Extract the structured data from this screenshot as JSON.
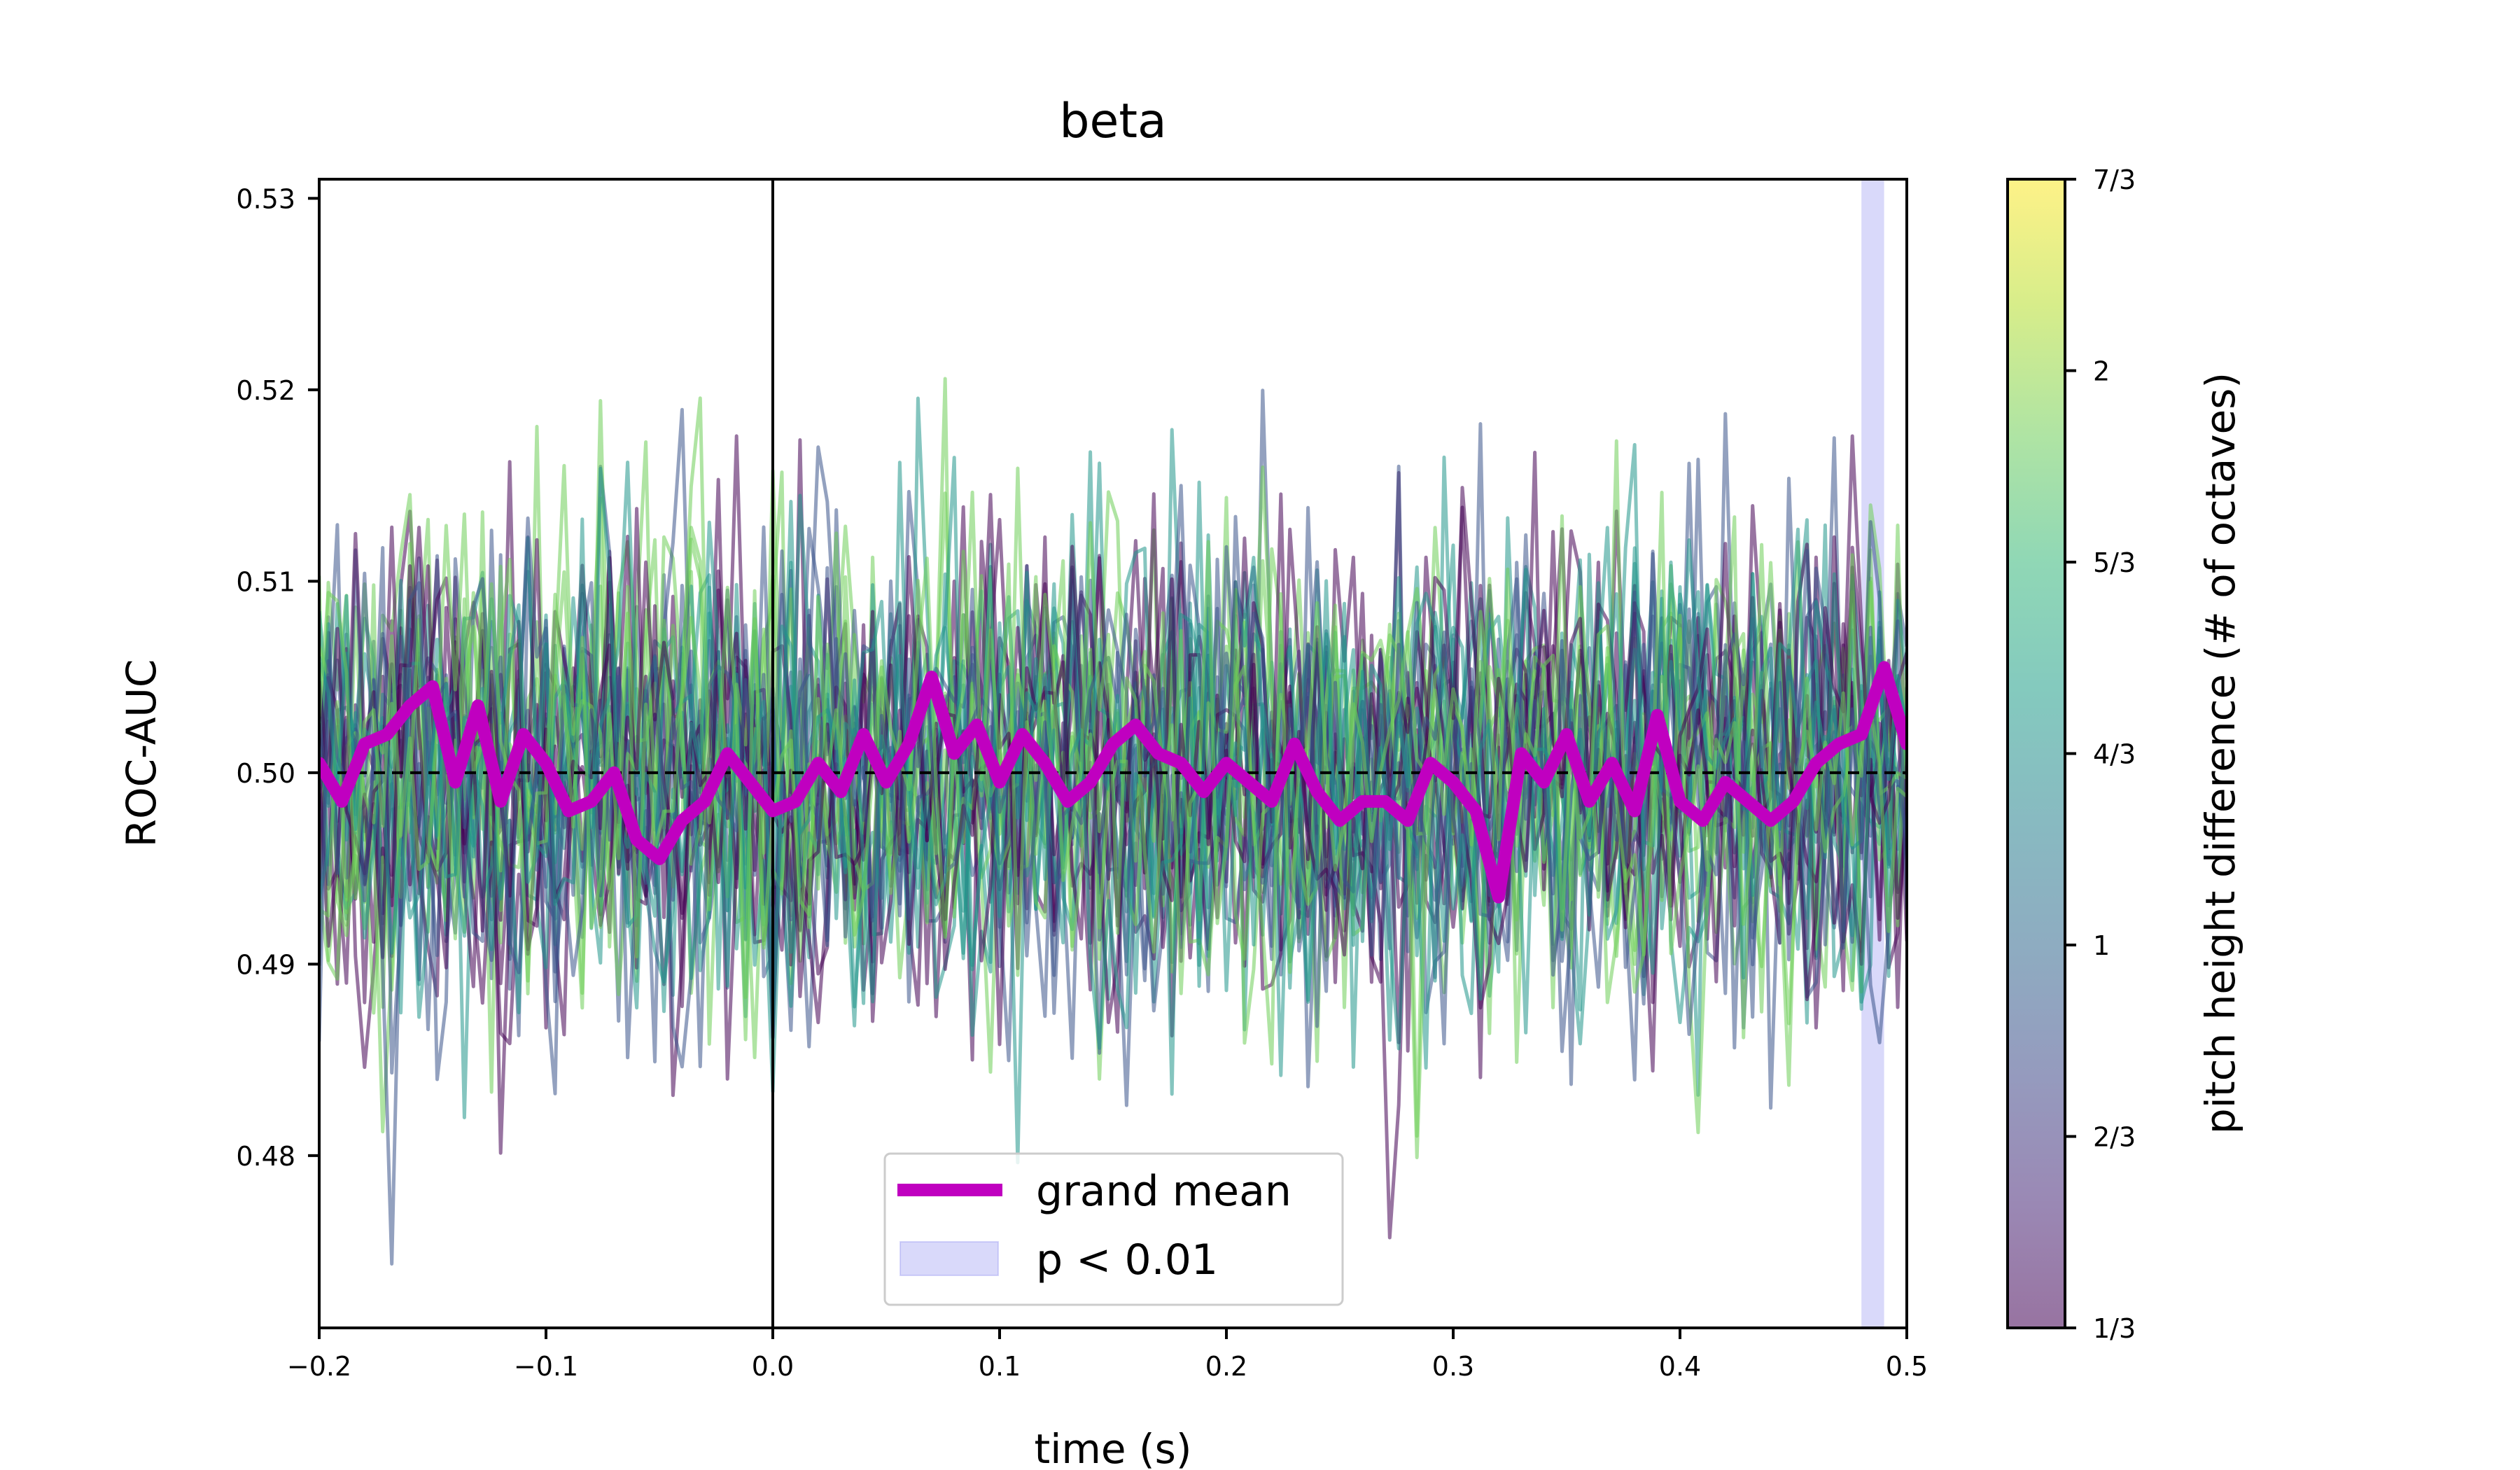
{
  "chart_data": {
    "type": "line",
    "title": "beta",
    "xlabel": "time (s)",
    "ylabel": "ROC-AUC",
    "xlim": [
      -0.2,
      0.5
    ],
    "ylim": [
      0.471,
      0.531
    ],
    "x_ticks": [
      {
        "value": -0.2,
        "label": "−0.2"
      },
      {
        "value": -0.1,
        "label": "−0.1"
      },
      {
        "value": 0.0,
        "label": "0.0"
      },
      {
        "value": 0.1,
        "label": "0.1"
      },
      {
        "value": 0.2,
        "label": "0.2"
      },
      {
        "value": 0.3,
        "label": "0.3"
      },
      {
        "value": 0.4,
        "label": "0.4"
      },
      {
        "value": 0.5,
        "label": "0.5"
      }
    ],
    "y_ticks": [
      {
        "value": 0.48,
        "label": "0.48"
      },
      {
        "value": 0.49,
        "label": "0.49"
      },
      {
        "value": 0.5,
        "label": "0.50"
      },
      {
        "value": 0.51,
        "label": "0.51"
      },
      {
        "value": 0.52,
        "label": "0.52"
      },
      {
        "value": 0.53,
        "label": "0.53"
      }
    ],
    "grid": false,
    "reference_lines": {
      "chance_level_y": 0.5,
      "stimulus_onset_x": 0.0
    },
    "significance_band": {
      "label": "p < 0.01",
      "x_start": 0.48,
      "x_end": 0.49,
      "color": "#8080f0",
      "alpha": 0.3
    },
    "grand_mean": {
      "name": "grand mean",
      "color": "#c000c0",
      "x": [
        -0.2,
        -0.19,
        -0.18,
        -0.17,
        -0.16,
        -0.15,
        -0.14,
        -0.13,
        -0.12,
        -0.11,
        -0.1,
        -0.09,
        -0.08,
        -0.07,
        -0.06,
        -0.05,
        -0.04,
        -0.03,
        -0.02,
        -0.01,
        0.0,
        0.01,
        0.02,
        0.03,
        0.04,
        0.05,
        0.06,
        0.07,
        0.08,
        0.09,
        0.1,
        0.11,
        0.12,
        0.13,
        0.14,
        0.15,
        0.16,
        0.17,
        0.18,
        0.19,
        0.2,
        0.21,
        0.22,
        0.23,
        0.24,
        0.25,
        0.26,
        0.27,
        0.28,
        0.29,
        0.3,
        0.31,
        0.32,
        0.33,
        0.34,
        0.35,
        0.36,
        0.37,
        0.38,
        0.39,
        0.4,
        0.41,
        0.42,
        0.43,
        0.44,
        0.45,
        0.46,
        0.47,
        0.48,
        0.49,
        0.5
      ],
      "y": [
        0.5005,
        0.4985,
        0.5015,
        0.502,
        0.5035,
        0.5045,
        0.4995,
        0.5035,
        0.4985,
        0.502,
        0.5005,
        0.498,
        0.4985,
        0.5,
        0.4965,
        0.4955,
        0.4975,
        0.4985,
        0.501,
        0.4995,
        0.498,
        0.4985,
        0.5005,
        0.499,
        0.502,
        0.4995,
        0.5015,
        0.505,
        0.501,
        0.5025,
        0.4995,
        0.502,
        0.5005,
        0.4985,
        0.4995,
        0.5015,
        0.5025,
        0.501,
        0.5005,
        0.499,
        0.5005,
        0.4995,
        0.4985,
        0.5015,
        0.499,
        0.4975,
        0.4985,
        0.4985,
        0.4975,
        0.5005,
        0.4995,
        0.498,
        0.4935,
        0.501,
        0.4995,
        0.502,
        0.4985,
        0.5005,
        0.498,
        0.503,
        0.4985,
        0.4975,
        0.4995,
        0.4985,
        0.4975,
        0.4985,
        0.5005,
        0.5015,
        0.502,
        0.5055,
        0.5015
      ]
    },
    "condition_traces": {
      "n_traces": 28,
      "colormap": "viridis",
      "alpha": 0.55,
      "x_step": 0.004,
      "spread_sd": 0.0062,
      "value_range": [
        1,
        7
      ]
    },
    "colorbar": {
      "label": "pitch height difference (# of octaves)",
      "colors": [
        "#440154",
        "#482878",
        "#3e4989",
        "#31688e",
        "#26828e",
        "#1f9e89",
        "#35b779",
        "#6ece58",
        "#b5de2b",
        "#fde725"
      ],
      "alpha": 0.55,
      "ticks": [
        {
          "value": 1,
          "label": "1/3"
        },
        {
          "value": 2,
          "label": "2/3"
        },
        {
          "value": 3,
          "label": "1"
        },
        {
          "value": 4,
          "label": "4/3"
        },
        {
          "value": 5,
          "label": "5/3"
        },
        {
          "value": 6,
          "label": "2"
        },
        {
          "value": 7,
          "label": "7/3"
        }
      ]
    },
    "legend": {
      "placement": "lower-center",
      "entries": [
        {
          "label": "grand mean",
          "kind": "line",
          "color": "#c000c0"
        },
        {
          "label": "p < 0.01",
          "kind": "patch",
          "color": "#8080f0"
        }
      ]
    }
  }
}
